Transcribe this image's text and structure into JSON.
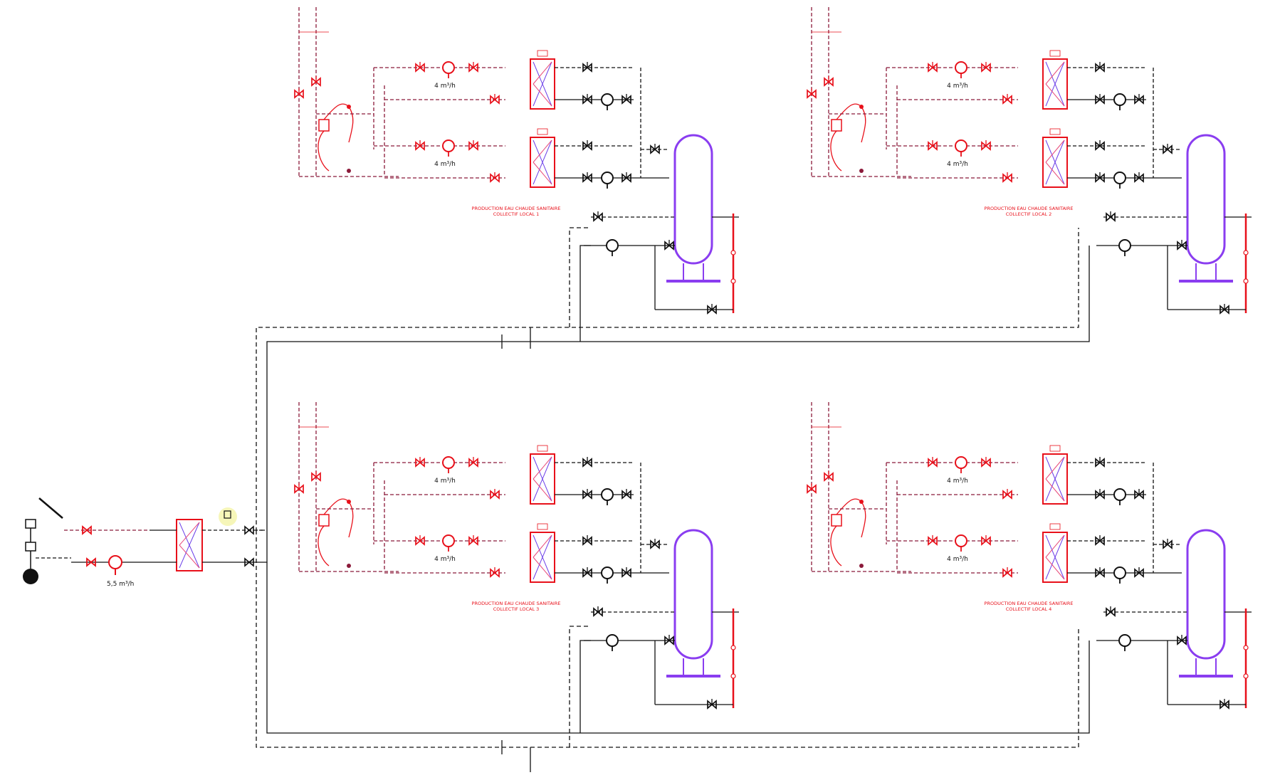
{
  "colors": {
    "water": "#111111",
    "heating": "#e8101a",
    "heating_line": "#8b1a3a",
    "tank": "#8a3df0",
    "exchanger_mesh_a": "#6a3de8",
    "exchanger_mesh_b": "#e84a7a",
    "highlight": "#f4f4a8"
  },
  "source": {
    "flow_label": "5,5 m³/h"
  },
  "modules": [
    {
      "id": "1",
      "flow_top": "4 m³/h",
      "flow_bottom": "4 m³/h",
      "caption_1": "PRODUCTION EAU CHAUDE SANITAIRE",
      "caption_2": "COLLECTIF LOCAL 1"
    },
    {
      "id": "2",
      "flow_top": "4 m³/h",
      "flow_bottom": "4 m³/h",
      "caption_1": "PRODUCTION EAU CHAUDE SANITAIRE",
      "caption_2": "COLLECTIF LOCAL 2"
    },
    {
      "id": "3",
      "flow_top": "4 m³/h",
      "flow_bottom": "4 m³/h",
      "caption_1": "PRODUCTION EAU CHAUDE SANITAIRE",
      "caption_2": "COLLECTIF LOCAL 3"
    },
    {
      "id": "4",
      "flow_top": "4 m³/h",
      "flow_bottom": "4 m³/h",
      "caption_1": "PRODUCTION EAU CHAUDE SANITAIRE",
      "caption_2": "COLLECTIF LOCAL 4"
    }
  ]
}
